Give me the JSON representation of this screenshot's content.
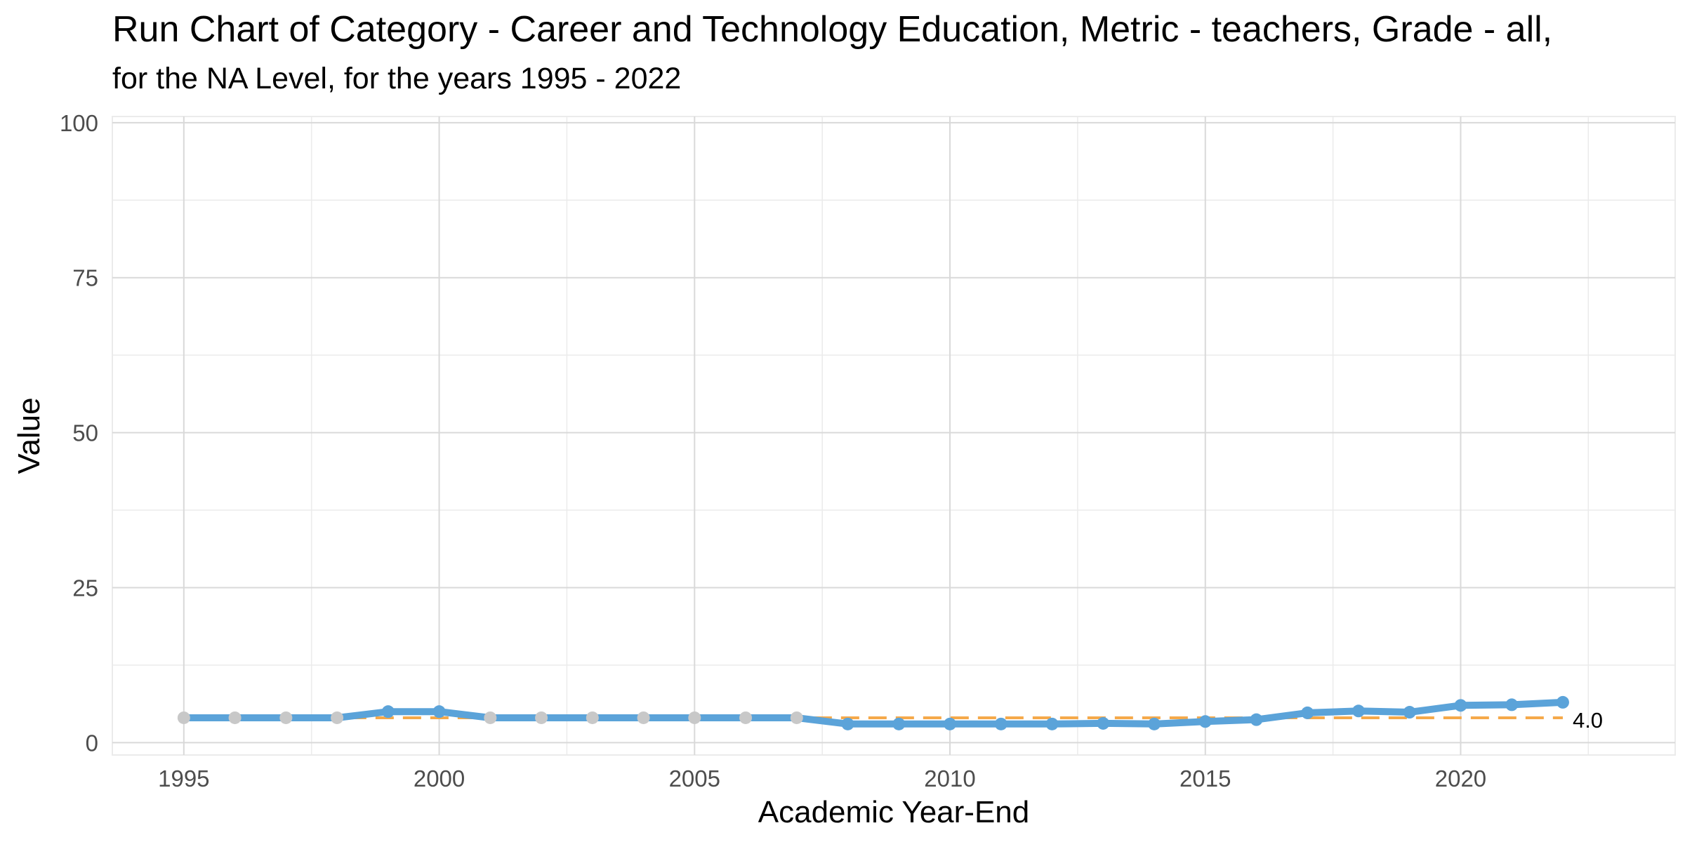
{
  "chart_data": {
    "type": "line",
    "title": "Run Chart of Category -  Career and Technology Education, Metric - teachers, Grade - all,",
    "subtitle": "for the NA Level, for the years 1995 - 2022",
    "xlabel": "Academic Year-End",
    "ylabel": "Value",
    "xlim": [
      1993.6,
      2024.2
    ],
    "ylim": [
      -2,
      101
    ],
    "x_ticks": [
      1995,
      2000,
      2005,
      2010,
      2015,
      2020
    ],
    "y_ticks": [
      0,
      25,
      50,
      75,
      100
    ],
    "grid": true,
    "series": [
      {
        "x": [
          1995,
          1996,
          1997,
          1998,
          1999,
          2000,
          2001,
          2002,
          2003,
          2004,
          2005,
          2006,
          2007,
          2008,
          2009,
          2010,
          2011,
          2012,
          2013,
          2014,
          2015,
          2016,
          2017,
          2018,
          2019,
          2020,
          2021,
          2022
        ],
        "values": [
          4.0,
          4.0,
          4.0,
          4.0,
          5.0,
          5.0,
          4.0,
          4.0,
          4.0,
          4.0,
          4.0,
          4.0,
          4.0,
          3.0,
          3.0,
          3.0,
          3.0,
          3.0,
          3.1,
          3.0,
          3.4,
          3.7,
          4.8,
          5.1,
          4.9,
          6.0,
          6.1,
          6.5
        ],
        "point_colors": [
          "#c8c8c8",
          "#c8c8c8",
          "#c8c8c8",
          "#c8c8c8",
          "#5ba3d9",
          "#5ba3d9",
          "#c8c8c8",
          "#c8c8c8",
          "#c8c8c8",
          "#c8c8c8",
          "#c8c8c8",
          "#c8c8c8",
          "#c8c8c8",
          "#5ba3d9",
          "#5ba3d9",
          "#5ba3d9",
          "#5ba3d9",
          "#5ba3d9",
          "#5ba3d9",
          "#5ba3d9",
          "#5ba3d9",
          "#5ba3d9",
          "#5ba3d9",
          "#5ba3d9",
          "#5ba3d9",
          "#5ba3d9",
          "#5ba3d9",
          "#5ba3d9"
        ],
        "color": "#5ba3d9"
      }
    ],
    "median_line": {
      "value": 4.0,
      "label": "4.0",
      "color": "#f5a94a",
      "style": "dashed"
    }
  }
}
